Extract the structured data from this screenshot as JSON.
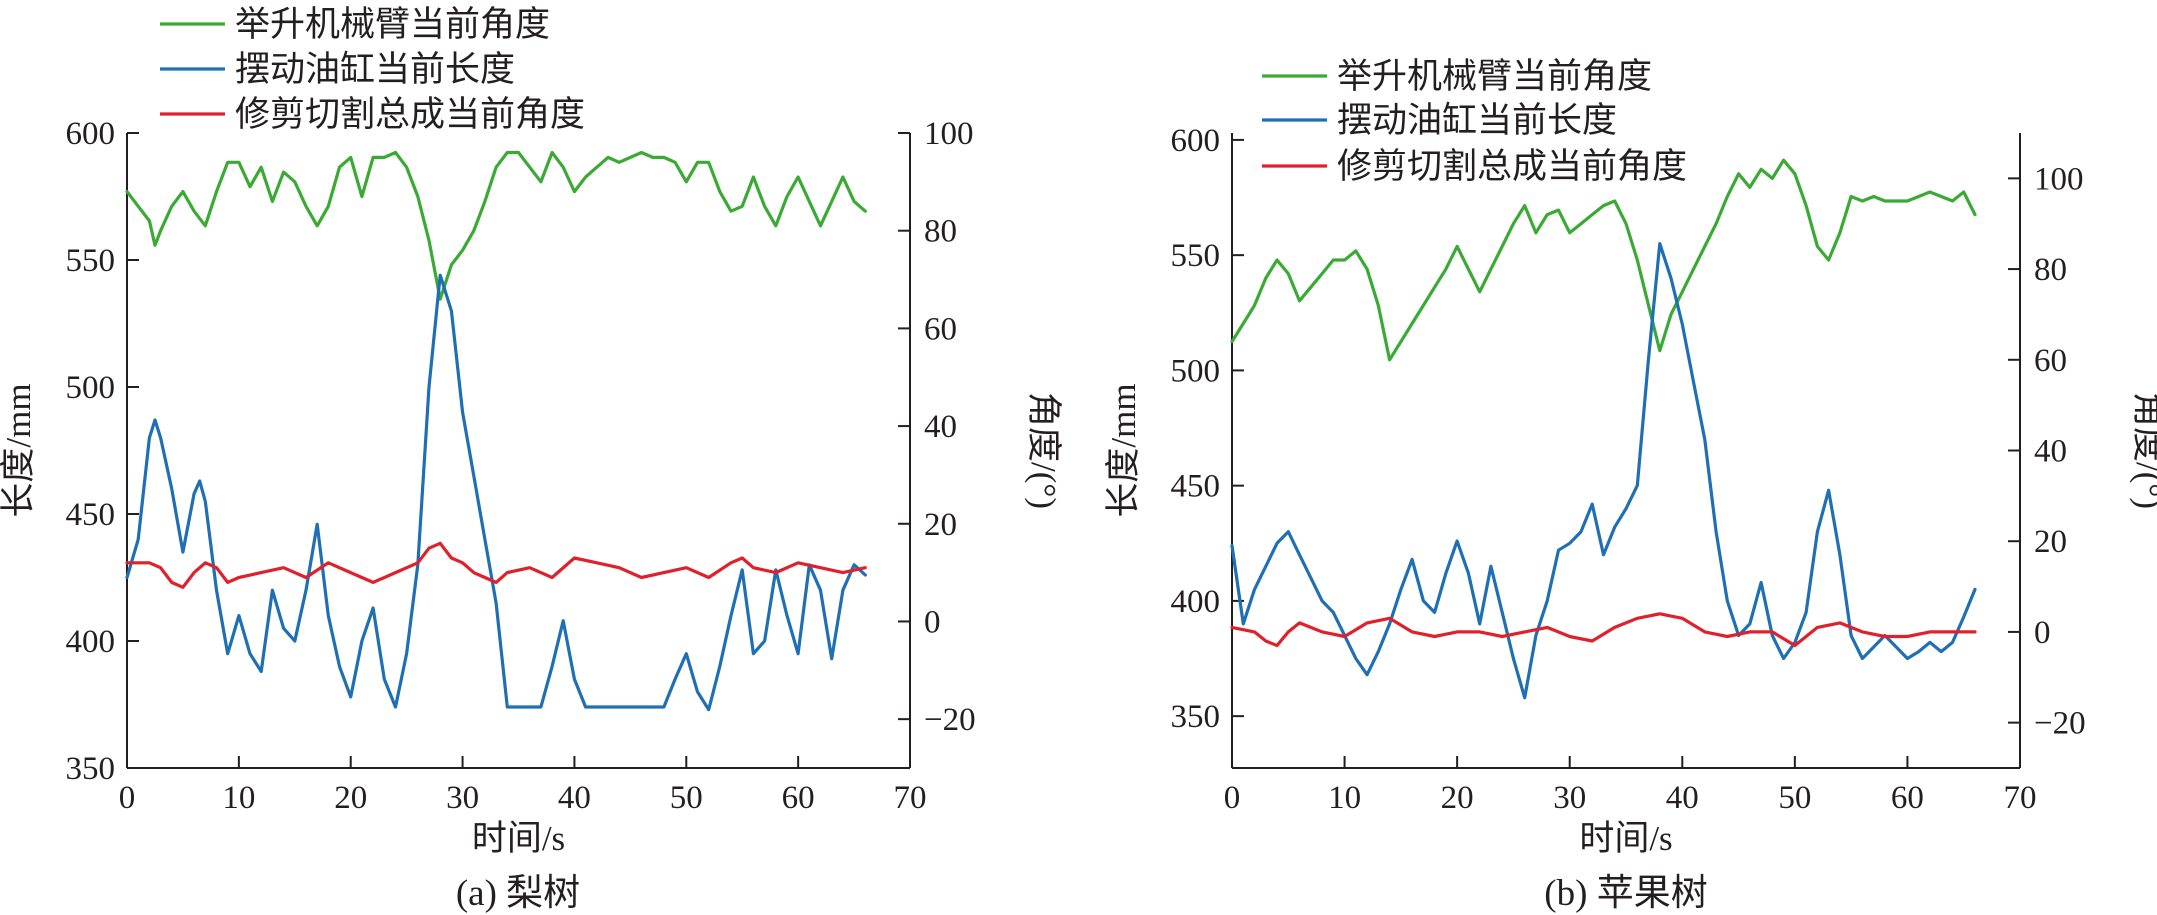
{
  "colors": {
    "lift_arm_angle": "#3aaa35",
    "swing_cylinder_length": "#1f6fb5",
    "trim_cutter_angle": "#e0202a",
    "axis": "#231f20"
  },
  "chart_data": [
    {
      "type": "line",
      "caption": "(a) 梨树",
      "xlabel": "时间/s",
      "ylabel_left": "长度/mm",
      "ylabel_right": "角度/(°)",
      "xlim": [
        0,
        70
      ],
      "ylim_left": [
        350,
        600
      ],
      "ylim_right": [
        -30,
        100
      ],
      "xticks": [
        0,
        10,
        20,
        30,
        40,
        50,
        60,
        70
      ],
      "yticks_left": [
        350,
        400,
        450,
        500,
        550,
        600
      ],
      "yticks_right": [
        -20,
        0,
        20,
        40,
        60,
        80,
        100
      ],
      "legend_position": "top-left",
      "series": [
        {
          "name": "举升机械臂当前角度",
          "axis": "right",
          "color_key": "lift_arm_angle",
          "x": [
            0,
            1,
            2,
            2.5,
            3,
            4,
            5,
            6,
            7,
            8,
            9,
            10,
            11,
            12,
            13,
            14,
            15,
            16,
            17,
            18,
            19,
            20,
            21,
            22,
            23,
            24,
            25,
            26,
            27,
            28,
            29,
            30,
            31,
            32,
            33,
            34,
            35,
            36,
            37,
            38,
            39,
            40,
            41,
            42,
            43,
            44,
            45,
            46,
            47,
            48,
            49,
            50,
            51,
            52,
            53,
            54,
            55,
            56,
            57,
            58,
            59,
            60,
            61,
            62,
            63,
            64,
            65,
            66
          ],
          "y": [
            88,
            85,
            82,
            77,
            80,
            85,
            88,
            84,
            81,
            88,
            94,
            94,
            89,
            93,
            86,
            92,
            90,
            85,
            81,
            85,
            93,
            95,
            87,
            95,
            95,
            96,
            93,
            87,
            78,
            66,
            73,
            76,
            80,
            86,
            93,
            96,
            96,
            93,
            90,
            96,
            93,
            88,
            91,
            93,
            95,
            94,
            95,
            96,
            95,
            95,
            94,
            90,
            94,
            94,
            88,
            84,
            85,
            91,
            85,
            81,
            87,
            91,
            86,
            81,
            86,
            91,
            86,
            84
          ]
        },
        {
          "name": "摆动油缸当前长度",
          "axis": "left",
          "color_key": "swing_cylinder_length",
          "x": [
            0,
            1,
            2,
            2.5,
            3,
            4,
            5,
            6,
            6.5,
            7,
            8,
            9,
            10,
            11,
            12,
            13,
            14,
            15,
            16,
            17,
            18,
            19,
            20,
            21,
            22,
            23,
            24,
            25,
            26,
            27,
            28,
            29,
            30,
            31,
            32,
            33,
            34,
            35,
            36,
            37,
            38,
            39,
            40,
            41,
            42,
            43,
            44,
            45,
            46,
            47,
            48,
            49,
            50,
            51,
            52,
            53,
            54,
            55,
            56,
            57,
            58,
            59,
            60,
            61,
            62,
            63,
            64,
            65,
            66
          ],
          "y": [
            425,
            440,
            480,
            487,
            480,
            460,
            435,
            458,
            463,
            455,
            420,
            395,
            410,
            395,
            388,
            420,
            405,
            400,
            420,
            446,
            410,
            390,
            378,
            400,
            413,
            385,
            374,
            395,
            430,
            500,
            544,
            530,
            490,
            465,
            440,
            415,
            374,
            374,
            374,
            374,
            390,
            408,
            385,
            374,
            374,
            374,
            374,
            374,
            374,
            374,
            374,
            385,
            395,
            380,
            373,
            390,
            410,
            428,
            395,
            400,
            428,
            410,
            395,
            430,
            420,
            393,
            420,
            430,
            426
          ]
        },
        {
          "name": "修剪切割总成当前角度",
          "axis": "right",
          "color_key": "trim_cutter_angle",
          "x": [
            0,
            2,
            3,
            4,
            5,
            6,
            7,
            8,
            9,
            10,
            12,
            14,
            16,
            18,
            20,
            22,
            24,
            26,
            27,
            28,
            29,
            30,
            31,
            32,
            33,
            34,
            36,
            38,
            40,
            42,
            44,
            46,
            48,
            50,
            52,
            54,
            55,
            56,
            58,
            60,
            62,
            64,
            66
          ],
          "y": [
            12,
            12,
            11,
            8,
            7,
            10,
            12,
            11,
            8,
            9,
            10,
            11,
            9,
            12,
            10,
            8,
            10,
            12,
            15,
            16,
            13,
            12,
            10,
            9,
            8,
            10,
            11,
            9,
            13,
            12,
            11,
            9,
            10,
            11,
            9,
            12,
            13,
            11,
            10,
            12,
            11,
            10,
            11
          ]
        }
      ]
    },
    {
      "type": "line",
      "caption": "(b) 苹果树",
      "xlabel": "时间/s",
      "ylabel_left": "长度/mm",
      "ylabel_right": "角度/(°)",
      "xlim": [
        0,
        70
      ],
      "ylim_left": [
        327.5,
        603
      ],
      "ylim_right": [
        -30,
        110
      ],
      "xticks": [
        0,
        10,
        20,
        30,
        40,
        50,
        60,
        70
      ],
      "yticks_left": [
        350,
        400,
        450,
        500,
        550,
        600
      ],
      "yticks_right": [
        -20,
        0,
        20,
        40,
        60,
        80,
        100
      ],
      "legend_position": "top-left",
      "series": [
        {
          "name": "举升机械臂当前角度",
          "axis": "right",
          "color_key": "lift_arm_angle",
          "x": [
            0,
            1,
            2,
            3,
            4,
            5,
            6,
            7,
            8,
            9,
            10,
            11,
            12,
            13,
            14,
            15,
            16,
            17,
            18,
            19,
            20,
            21,
            22,
            23,
            24,
            25,
            26,
            27,
            28,
            29,
            30,
            31,
            32,
            33,
            34,
            35,
            36,
            37,
            38,
            39,
            40,
            41,
            42,
            43,
            44,
            45,
            46,
            47,
            48,
            49,
            50,
            51,
            52,
            53,
            54,
            55,
            56,
            57,
            58,
            59,
            60,
            61,
            62,
            63,
            64,
            65,
            66
          ],
          "y": [
            64,
            68,
            72,
            78,
            82,
            79,
            73,
            76,
            79,
            82,
            82,
            84,
            80,
            72,
            60,
            64,
            68,
            72,
            76,
            80,
            85,
            80,
            75,
            80,
            85,
            90,
            94,
            88,
            92,
            93,
            88,
            90,
            92,
            94,
            95,
            90,
            82,
            72,
            62,
            70,
            75,
            80,
            85,
            90,
            96,
            101,
            98,
            102,
            100,
            104,
            101,
            94,
            85,
            82,
            88,
            96,
            95,
            96,
            95,
            95,
            95,
            96,
            97,
            96,
            95,
            97,
            92
          ]
        },
        {
          "name": "摆动油缸当前长度",
          "axis": "left",
          "color_key": "swing_cylinder_length",
          "x": [
            0,
            1,
            2,
            3,
            4,
            5,
            6,
            7,
            8,
            9,
            10,
            11,
            12,
            13,
            14,
            15,
            16,
            17,
            18,
            19,
            20,
            21,
            22,
            23,
            24,
            25,
            26,
            27,
            28,
            29,
            30,
            31,
            32,
            33,
            34,
            35,
            36,
            37,
            38,
            39,
            40,
            41,
            42,
            43,
            44,
            45,
            46,
            47,
            48,
            49,
            50,
            51,
            52,
            53,
            54,
            55,
            56,
            57,
            58,
            59,
            60,
            61,
            62,
            63,
            64,
            65,
            66
          ],
          "y": [
            424,
            390,
            405,
            415,
            425,
            430,
            420,
            410,
            400,
            395,
            385,
            375,
            368,
            378,
            390,
            405,
            418,
            400,
            395,
            412,
            426,
            412,
            390,
            415,
            395,
            375,
            358,
            385,
            400,
            422,
            425,
            430,
            442,
            420,
            432,
            440,
            450,
            505,
            555,
            540,
            520,
            495,
            470,
            430,
            400,
            385,
            390,
            408,
            385,
            375,
            382,
            395,
            430,
            448,
            420,
            385,
            375,
            380,
            385,
            380,
            375,
            378,
            382,
            378,
            382,
            393,
            405
          ]
        },
        {
          "name": "修剪切割总成当前角度",
          "axis": "right",
          "color_key": "trim_cutter_angle",
          "x": [
            0,
            2,
            3,
            4,
            5,
            6,
            8,
            10,
            12,
            14,
            16,
            18,
            20,
            22,
            24,
            26,
            28,
            30,
            32,
            34,
            36,
            38,
            40,
            42,
            44,
            46,
            48,
            50,
            52,
            54,
            56,
            58,
            60,
            62,
            64,
            66
          ],
          "y": [
            1,
            0,
            -2,
            -3,
            0,
            2,
            0,
            -1,
            2,
            3,
            0,
            -1,
            0,
            0,
            -1,
            0,
            1,
            -1,
            -2,
            1,
            3,
            4,
            3,
            0,
            -1,
            0,
            0,
            -3,
            1,
            2,
            0,
            -1,
            -1,
            0,
            0,
            0
          ]
        }
      ]
    }
  ]
}
